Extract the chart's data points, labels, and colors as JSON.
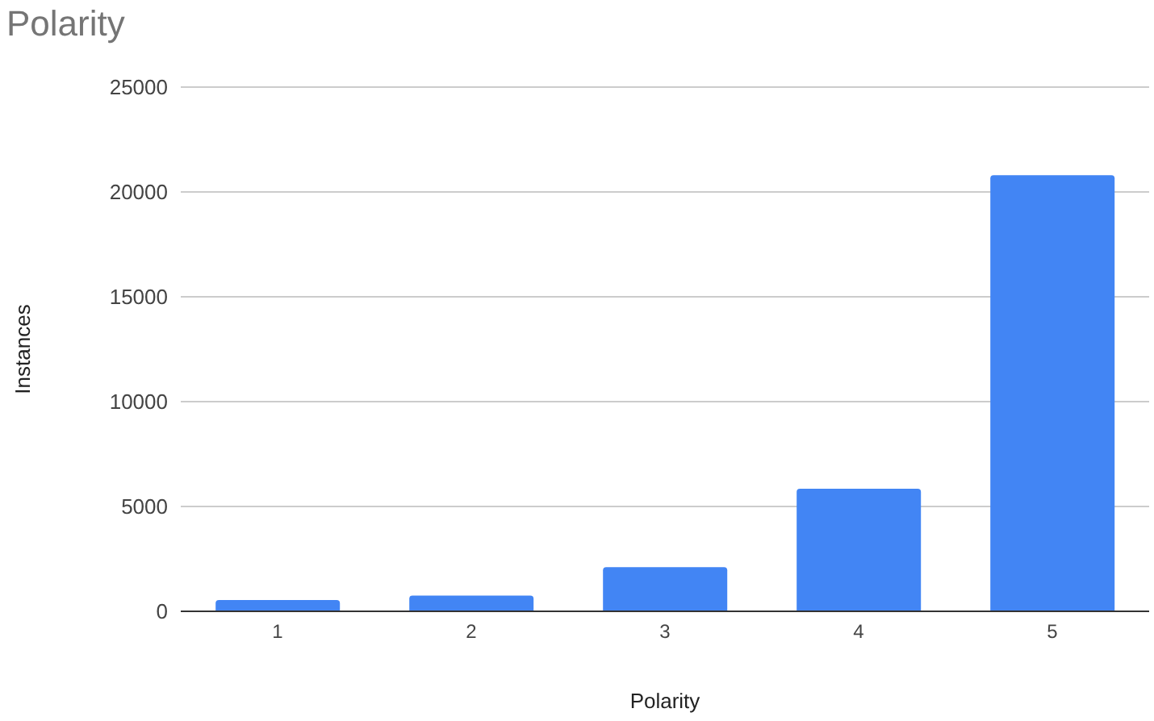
{
  "chart_data": {
    "type": "bar",
    "title": "Polarity",
    "xlabel": "Polarity",
    "ylabel": "Instances",
    "categories": [
      "1",
      "2",
      "3",
      "4",
      "5"
    ],
    "values": [
      540,
      750,
      2110,
      5850,
      20800
    ],
    "color": "#4285f4",
    "ylim": [
      0,
      25000
    ],
    "yticks": [
      0,
      5000,
      10000,
      15000,
      20000,
      25000
    ],
    "grid": "y"
  }
}
